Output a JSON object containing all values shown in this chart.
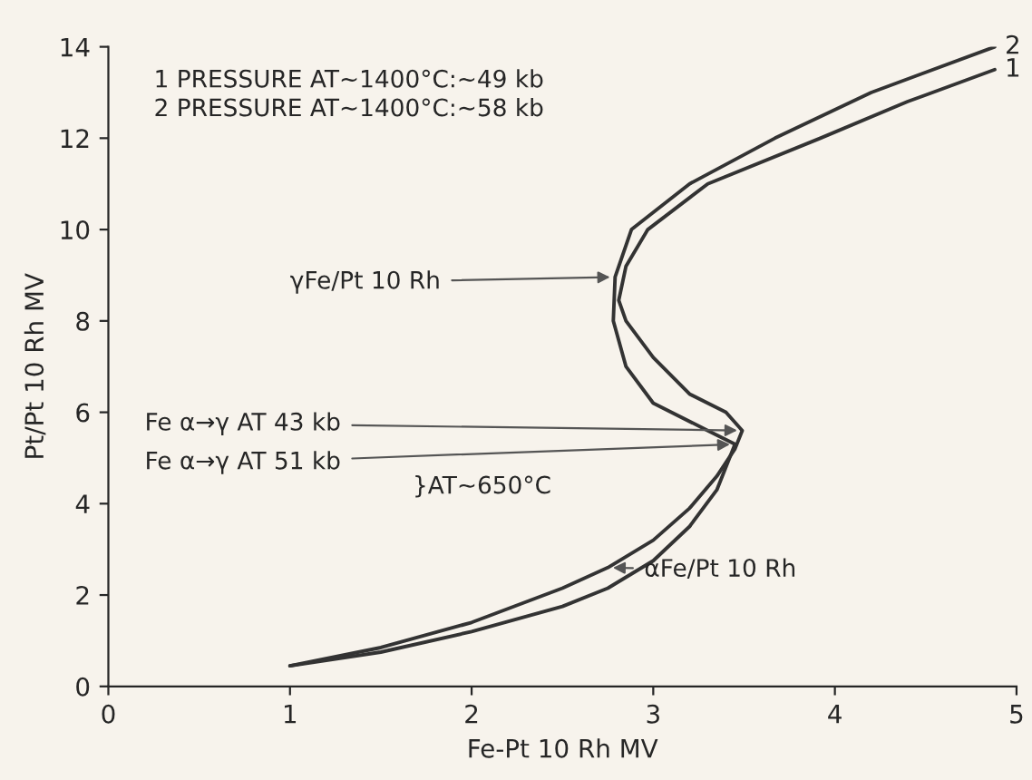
{
  "chart_data": {
    "type": "line",
    "xlabel": "Fe-Pt 10 Rh MV",
    "ylabel": "Pt/Pt 10 Rh MV",
    "xlim": [
      0,
      5
    ],
    "ylim": [
      0,
      14
    ],
    "xticks": [
      0,
      1,
      2,
      3,
      4,
      5
    ],
    "yticks": [
      0,
      2,
      4,
      6,
      8,
      10,
      12,
      14
    ],
    "grid": false,
    "marker": "none",
    "line_style": "solid",
    "series": [
      {
        "name": "1",
        "color": "#333333",
        "x": [
          1,
          1.5,
          2,
          2.5,
          2.75,
          3,
          3.2,
          3.35,
          3.45,
          3.49,
          3.4,
          3.2,
          3.0,
          2.85,
          2.81,
          2.85,
          2.97,
          3.3,
          3.92,
          4.4,
          4.88
        ],
        "values": [
          0.45,
          0.85,
          1.4,
          2.15,
          2.6,
          3.2,
          3.9,
          4.6,
          5.2,
          5.6,
          6.0,
          6.4,
          7.2,
          8.0,
          8.45,
          9.2,
          10,
          11,
          12,
          12.8,
          13.5
        ]
      },
      {
        "name": "2",
        "color": "#333333",
        "x": [
          1,
          1.5,
          2,
          2.5,
          2.75,
          3,
          3.2,
          3.35,
          3.45,
          3.3,
          3.0,
          2.85,
          2.78,
          2.79,
          2.88,
          3.2,
          3.67,
          4.2,
          4.88
        ],
        "values": [
          0.45,
          0.75,
          1.2,
          1.75,
          2.15,
          2.75,
          3.5,
          4.3,
          5.3,
          5.6,
          6.2,
          7.0,
          8.0,
          8.96,
          10,
          11,
          12,
          13,
          14.0
        ]
      }
    ],
    "annotations": [
      "1 PRESSURE AT~1400°C:~49 kb",
      "2 PRESSURE AT~1400°C:~58 kb",
      {
        "text": "γFe/Pt 10 Rh",
        "x": 2.79,
        "y": 8.96
      },
      {
        "text": "Fe α→γ AT 43 kb",
        "x": 3.49,
        "y": 5.6
      },
      {
        "text": "Fe α→γ AT 51 kb",
        "x": 3.45,
        "y": 5.3
      },
      "}AT~650°C",
      {
        "text": "αFe/Pt 10 Rh",
        "x": 2.75,
        "y": 2.6
      }
    ]
  }
}
